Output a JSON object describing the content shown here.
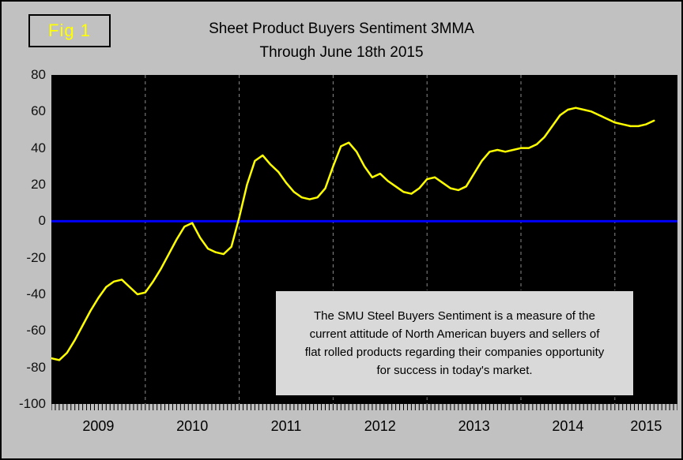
{
  "figure": {
    "fig_label": "Fig 1",
    "title_line1": "Sheet Product Buyers Sentiment 3MMA",
    "title_line2": "Through June 18th 2015"
  },
  "annotation": {
    "lines": [
      "The SMU Steel Buyers Sentiment is a measure of the",
      "current attitude of North American buyers and sellers of",
      "flat rolled products regarding their companies opportunity",
      "for success in today's market."
    ]
  },
  "chart_data": {
    "type": "line",
    "title": "Sheet Product Buyers Sentiment 3MMA Through June 18th 2015",
    "series_name": "Sheet Product Buyers Sentiment 3MMA",
    "x_start": "Jan 2009",
    "x_end": "Jun 2015",
    "x_frequency": "monthly (values estimated from plotted 3-month moving average curve)",
    "x_axis_total_months": 80,
    "values": [
      -75,
      -76,
      -72,
      -65,
      -57,
      -49,
      -42,
      -36,
      -33,
      -32,
      -36,
      -40,
      -39,
      -33,
      -26,
      -18,
      -10,
      -3,
      -1,
      -9,
      -15,
      -17,
      -18,
      -14,
      2,
      20,
      33,
      36,
      31,
      27,
      21,
      16,
      13,
      12,
      13,
      18,
      30,
      41,
      43,
      38,
      30,
      24,
      26,
      22,
      19,
      16,
      15,
      18,
      23,
      24,
      21,
      18,
      17,
      19,
      26,
      33,
      38,
      39,
      38,
      39,
      40,
      40,
      42,
      46,
      52,
      58,
      61,
      62,
      61,
      60,
      58,
      56,
      54,
      53,
      52,
      52,
      53,
      55
    ],
    "ylim": [
      -100,
      80
    ],
    "yticks": [
      80,
      60,
      40,
      20,
      0,
      -20,
      -40,
      -60,
      -80,
      -100
    ],
    "x_year_labels": [
      "2009",
      "2010",
      "2011",
      "2012",
      "2013",
      "2014",
      "2015"
    ],
    "xtick_center_months": [
      6,
      18,
      30,
      42,
      54,
      66,
      76
    ],
    "year_gridline_months": [
      12,
      24,
      36,
      48,
      60,
      72
    ],
    "zero_reference_line": 0,
    "grid": "vertical dashed gridlines at year boundaries only",
    "legend": "none",
    "colors": {
      "line": "#ffff00",
      "zero_line": "#0000ff",
      "plot_background": "#000000",
      "page_background": "#c1c1c1",
      "grid": "#8a8a8a",
      "fig_label_text": "#ffff00"
    }
  }
}
